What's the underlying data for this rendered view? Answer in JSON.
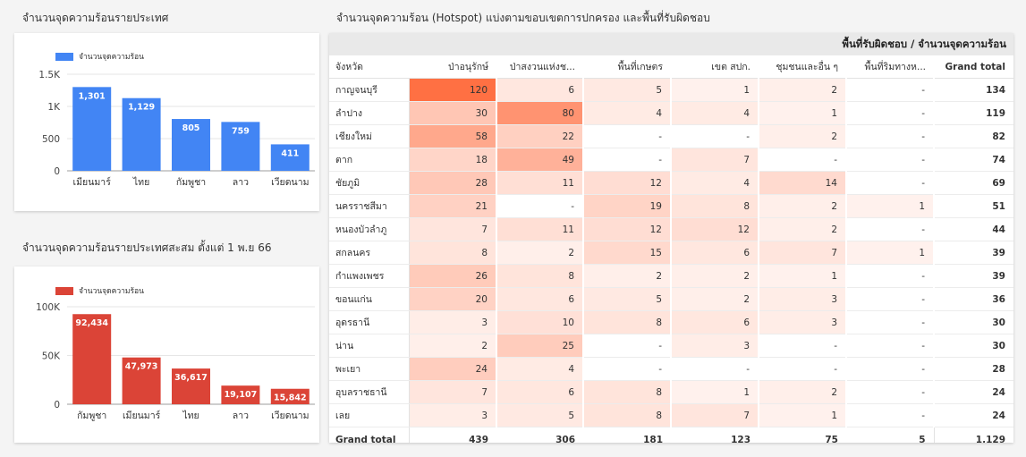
{
  "titles": {
    "hotspots_by_country": "จำนวนจุดความร้อนรายประเทศ",
    "cumulative_by_country": "จำนวนจุดความร้อนรายประเทศสะสม ตั้งแต่ 1 พ.ย 66",
    "table_title": "จำนวนจุดความร้อน (Hotspot) แบ่งตามขอบเขตการปกครอง และพื้นที่รับผิดชอบ"
  },
  "colors": {
    "blue": "#4285f4",
    "red": "#db4437",
    "heat_max": "#ff7043"
  },
  "chart_data": [
    {
      "type": "bar",
      "legend": "จำนวนจุดความร้อน",
      "categories": [
        "เมียนมาร์",
        "ไทย",
        "กัมพูชา",
        "ลาว",
        "เวียดนาม"
      ],
      "values": [
        1301,
        1129,
        805,
        759,
        411
      ],
      "value_labels": [
        "1,301",
        "1,129",
        "805",
        "759",
        "411"
      ],
      "yticks": [
        "0",
        "500",
        "1K",
        "1.5K"
      ],
      "ytick_values": [
        0,
        500,
        1000,
        1500
      ],
      "ylim": [
        0,
        1500
      ],
      "color": "#4285f4"
    },
    {
      "type": "bar",
      "legend": "จำนวนจุดความร้อน",
      "categories": [
        "กัมพูชา",
        "เมียนมาร์",
        "ไทย",
        "ลาว",
        "เวียดนาม"
      ],
      "values": [
        92434,
        47973,
        36617,
        19107,
        15842
      ],
      "value_labels": [
        "92,434",
        "47,973",
        "36,617",
        "19,107",
        "15,842"
      ],
      "yticks": [
        "0",
        "50K",
        "100K"
      ],
      "ytick_values": [
        0,
        50000,
        100000
      ],
      "ylim": [
        0,
        100000
      ],
      "color": "#db4437"
    },
    {
      "type": "table",
      "header_group": "พื้นที่รับผิดชอบ / จำนวนจุดความร้อน",
      "columns": [
        "จังหวัด",
        "ป่าอนุรักษ์",
        "ป่าสงวนแห่งช...",
        "พื้นที่เกษตร",
        "เขต สปก.",
        "ชุมชนและอื่น ๆ",
        "พื้นที่ริมทางห...",
        "Grand total"
      ],
      "rows": [
        {
          "province": "กาญจนบุรี",
          "values": [
            "120",
            "6",
            "5",
            "1",
            "2",
            "-"
          ],
          "total": "134"
        },
        {
          "province": "ลำปาง",
          "values": [
            "30",
            "80",
            "4",
            "4",
            "1",
            "-"
          ],
          "total": "119"
        },
        {
          "province": "เชียงใหม่",
          "values": [
            "58",
            "22",
            "-",
            "-",
            "2",
            "-"
          ],
          "total": "82"
        },
        {
          "province": "ตาก",
          "values": [
            "18",
            "49",
            "-",
            "7",
            "-",
            "-"
          ],
          "total": "74"
        },
        {
          "province": "ชัยภูมิ",
          "values": [
            "28",
            "11",
            "12",
            "4",
            "14",
            "-"
          ],
          "total": "69"
        },
        {
          "province": "นครราชสีมา",
          "values": [
            "21",
            "-",
            "19",
            "8",
            "2",
            "1"
          ],
          "total": "51"
        },
        {
          "province": "หนองบัวลำภู",
          "values": [
            "7",
            "11",
            "12",
            "12",
            "2",
            "-"
          ],
          "total": "44"
        },
        {
          "province": "สกลนคร",
          "values": [
            "8",
            "2",
            "15",
            "6",
            "7",
            "1"
          ],
          "total": "39"
        },
        {
          "province": "กำแพงเพชร",
          "values": [
            "26",
            "8",
            "2",
            "2",
            "1",
            "-"
          ],
          "total": "39"
        },
        {
          "province": "ขอนแก่น",
          "values": [
            "20",
            "6",
            "5",
            "2",
            "3",
            "-"
          ],
          "total": "36"
        },
        {
          "province": "อุดรธานี",
          "values": [
            "3",
            "10",
            "8",
            "6",
            "3",
            "-"
          ],
          "total": "30"
        },
        {
          "province": "น่าน",
          "values": [
            "2",
            "25",
            "-",
            "3",
            "-",
            "-"
          ],
          "total": "30"
        },
        {
          "province": "พะเยา",
          "values": [
            "24",
            "4",
            "-",
            "-",
            "-",
            "-"
          ],
          "total": "28"
        },
        {
          "province": "อุบลราชธานี",
          "values": [
            "7",
            "6",
            "8",
            "1",
            "2",
            "-"
          ],
          "total": "24"
        },
        {
          "province": "เลย",
          "values": [
            "3",
            "5",
            "8",
            "7",
            "1",
            "-"
          ],
          "total": "24"
        }
      ],
      "footer": {
        "label": "Grand total",
        "values": [
          "439",
          "306",
          "181",
          "123",
          "75",
          "5"
        ],
        "total": "1,129"
      }
    }
  ]
}
